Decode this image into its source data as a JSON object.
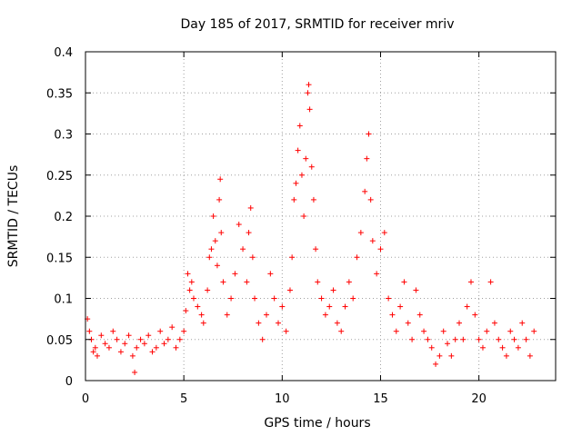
{
  "chart_data": {
    "type": "scatter",
    "title": "Day 185 of 2017, SRMTID for receiver mriv",
    "xlabel": "GPS time / hours",
    "ylabel": "SRMTID / TECUs",
    "xlim": [
      0,
      23.9
    ],
    "ylim": [
      0,
      0.4
    ],
    "x_ticks": [
      0,
      5,
      10,
      15,
      20
    ],
    "x_tick_labels": [
      "0",
      "5",
      "10",
      "15",
      "20"
    ],
    "y_ticks": [
      0,
      0.05,
      0.1,
      0.15,
      0.2,
      0.25,
      0.3,
      0.35,
      0.4
    ],
    "y_tick_labels": [
      "0",
      "0.05",
      "0.1",
      "0.15",
      "0.2",
      "0.25",
      "0.3",
      "0.35",
      "0.4"
    ],
    "grid": true,
    "marker": "+",
    "series": [
      {
        "name": "SRMTID",
        "color": "#ff0000",
        "points": [
          [
            0.1,
            0.075
          ],
          [
            0.2,
            0.06
          ],
          [
            0.3,
            0.05
          ],
          [
            0.4,
            0.035
          ],
          [
            0.5,
            0.04
          ],
          [
            0.6,
            0.03
          ],
          [
            0.8,
            0.055
          ],
          [
            1.0,
            0.045
          ],
          [
            1.2,
            0.04
          ],
          [
            1.4,
            0.06
          ],
          [
            1.6,
            0.05
          ],
          [
            1.8,
            0.035
          ],
          [
            2.0,
            0.045
          ],
          [
            2.2,
            0.055
          ],
          [
            2.4,
            0.03
          ],
          [
            2.5,
            0.01
          ],
          [
            2.6,
            0.04
          ],
          [
            2.8,
            0.05
          ],
          [
            3.0,
            0.045
          ],
          [
            3.2,
            0.055
          ],
          [
            3.4,
            0.035
          ],
          [
            3.6,
            0.04
          ],
          [
            3.8,
            0.06
          ],
          [
            4.0,
            0.045
          ],
          [
            4.2,
            0.05
          ],
          [
            4.4,
            0.065
          ],
          [
            4.6,
            0.04
          ],
          [
            4.8,
            0.05
          ],
          [
            5.0,
            0.06
          ],
          [
            5.1,
            0.085
          ],
          [
            5.2,
            0.13
          ],
          [
            5.3,
            0.11
          ],
          [
            5.4,
            0.12
          ],
          [
            5.5,
            0.1
          ],
          [
            5.7,
            0.09
          ],
          [
            5.9,
            0.08
          ],
          [
            6.0,
            0.07
          ],
          [
            6.2,
            0.11
          ],
          [
            6.3,
            0.15
          ],
          [
            6.4,
            0.16
          ],
          [
            6.5,
            0.2
          ],
          [
            6.6,
            0.17
          ],
          [
            6.7,
            0.14
          ],
          [
            6.8,
            0.22
          ],
          [
            6.85,
            0.245
          ],
          [
            6.9,
            0.18
          ],
          [
            7.0,
            0.12
          ],
          [
            7.2,
            0.08
          ],
          [
            7.4,
            0.1
          ],
          [
            7.6,
            0.13
          ],
          [
            7.8,
            0.19
          ],
          [
            8.0,
            0.16
          ],
          [
            8.2,
            0.12
          ],
          [
            8.3,
            0.18
          ],
          [
            8.4,
            0.21
          ],
          [
            8.5,
            0.15
          ],
          [
            8.6,
            0.1
          ],
          [
            8.8,
            0.07
          ],
          [
            9.0,
            0.05
          ],
          [
            9.2,
            0.08
          ],
          [
            9.4,
            0.13
          ],
          [
            9.6,
            0.1
          ],
          [
            9.8,
            0.07
          ],
          [
            10.0,
            0.09
          ],
          [
            10.2,
            0.06
          ],
          [
            10.4,
            0.11
          ],
          [
            10.5,
            0.15
          ],
          [
            10.6,
            0.22
          ],
          [
            10.7,
            0.24
          ],
          [
            10.8,
            0.28
          ],
          [
            10.9,
            0.31
          ],
          [
            11.0,
            0.25
          ],
          [
            11.1,
            0.2
          ],
          [
            11.2,
            0.27
          ],
          [
            11.3,
            0.35
          ],
          [
            11.35,
            0.36
          ],
          [
            11.4,
            0.33
          ],
          [
            11.5,
            0.26
          ],
          [
            11.6,
            0.22
          ],
          [
            11.7,
            0.16
          ],
          [
            11.8,
            0.12
          ],
          [
            12.0,
            0.1
          ],
          [
            12.2,
            0.08
          ],
          [
            12.4,
            0.09
          ],
          [
            12.6,
            0.11
          ],
          [
            12.8,
            0.07
          ],
          [
            13.0,
            0.06
          ],
          [
            13.2,
            0.09
          ],
          [
            13.4,
            0.12
          ],
          [
            13.6,
            0.1
          ],
          [
            13.8,
            0.15
          ],
          [
            14.0,
            0.18
          ],
          [
            14.2,
            0.23
          ],
          [
            14.3,
            0.27
          ],
          [
            14.4,
            0.3
          ],
          [
            14.5,
            0.22
          ],
          [
            14.6,
            0.17
          ],
          [
            14.8,
            0.13
          ],
          [
            15.0,
            0.16
          ],
          [
            15.2,
            0.18
          ],
          [
            15.4,
            0.1
          ],
          [
            15.6,
            0.08
          ],
          [
            15.8,
            0.06
          ],
          [
            16.0,
            0.09
          ],
          [
            16.2,
            0.12
          ],
          [
            16.4,
            0.07
          ],
          [
            16.6,
            0.05
          ],
          [
            16.8,
            0.11
          ],
          [
            17.0,
            0.08
          ],
          [
            17.2,
            0.06
          ],
          [
            17.4,
            0.05
          ],
          [
            17.6,
            0.04
          ],
          [
            17.8,
            0.02
          ],
          [
            18.0,
            0.03
          ],
          [
            18.2,
            0.06
          ],
          [
            18.4,
            0.045
          ],
          [
            18.6,
            0.03
          ],
          [
            18.8,
            0.05
          ],
          [
            19.0,
            0.07
          ],
          [
            19.2,
            0.05
          ],
          [
            19.4,
            0.09
          ],
          [
            19.6,
            0.12
          ],
          [
            19.8,
            0.08
          ],
          [
            20.0,
            0.05
          ],
          [
            20.2,
            0.04
          ],
          [
            20.4,
            0.06
          ],
          [
            20.6,
            0.12
          ],
          [
            20.8,
            0.07
          ],
          [
            21.0,
            0.05
          ],
          [
            21.2,
            0.04
          ],
          [
            21.4,
            0.03
          ],
          [
            21.6,
            0.06
          ],
          [
            21.8,
            0.05
          ],
          [
            22.0,
            0.04
          ],
          [
            22.2,
            0.07
          ],
          [
            22.4,
            0.05
          ],
          [
            22.6,
            0.03
          ],
          [
            22.8,
            0.06
          ]
        ]
      }
    ]
  }
}
